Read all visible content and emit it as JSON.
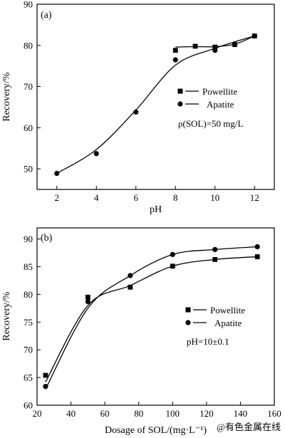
{
  "chart_data": [
    {
      "type": "scatter",
      "panel_label": "(a)",
      "xlabel": "pH",
      "ylabel": "Recovery/%",
      "xlim": [
        1,
        13
      ],
      "ylim": [
        45,
        90
      ],
      "xticks": [
        2,
        4,
        6,
        8,
        10,
        12
      ],
      "yticks": [
        50,
        60,
        70,
        80,
        90
      ],
      "annotation": "ρ(SOL)=50 mg/L",
      "legend_position": "right",
      "series": [
        {
          "name": "Powellite",
          "marker": "square",
          "x": [
            8,
            9,
            10,
            11,
            12
          ],
          "y": [
            78.8,
            79.8,
            79.6,
            80.2,
            82.3
          ],
          "curve_x": [
            8,
            9,
            10,
            11,
            12
          ],
          "curve_y": [
            79.6,
            79.7,
            79.7,
            80.3,
            82.3
          ]
        },
        {
          "name": "Apatite",
          "marker": "circle",
          "x": [
            2,
            4,
            6,
            8,
            10,
            12
          ],
          "y": [
            48.9,
            53.7,
            63.8,
            76.5,
            78.8,
            82.3
          ],
          "curve_x": [
            2,
            4,
            6,
            8,
            10,
            12
          ],
          "curve_y": [
            48.9,
            54.7,
            64.3,
            75.2,
            79.3,
            82.3
          ]
        }
      ]
    },
    {
      "type": "scatter",
      "panel_label": "(b)",
      "xlabel": "Dosage of SOL/(mg·L⁻¹)",
      "ylabel": "Recovery/%",
      "xlim": [
        20,
        160
      ],
      "ylim": [
        60,
        92
      ],
      "xticks": [
        20,
        40,
        60,
        80,
        100,
        120,
        140,
        160
      ],
      "yticks": [
        60,
        65,
        70,
        75,
        80,
        85,
        90
      ],
      "annotation": "pH=10±0.1",
      "legend_position": "right",
      "series": [
        {
          "name": "Powellite",
          "marker": "square",
          "x": [
            25,
            50,
            75,
            100,
            125,
            150
          ],
          "y": [
            65.4,
            79.5,
            81.3,
            85.1,
            86.3,
            86.8
          ],
          "curve_x": [
            25,
            50,
            75,
            100,
            125,
            150
          ],
          "curve_y": [
            64.2,
            78.0,
            81.6,
            85.1,
            86.3,
            86.8
          ]
        },
        {
          "name": "Apatite",
          "marker": "circle",
          "x": [
            25,
            50,
            75,
            100,
            125,
            150
          ],
          "y": [
            63.4,
            78.7,
            83.4,
            87.2,
            88.1,
            88.6
          ],
          "curve_x": [
            25,
            50,
            75,
            100,
            125,
            150
          ],
          "curve_y": [
            62.9,
            77.5,
            83.4,
            87.2,
            88.1,
            88.6
          ]
        }
      ]
    }
  ],
  "watermark": "@有色金属在线"
}
